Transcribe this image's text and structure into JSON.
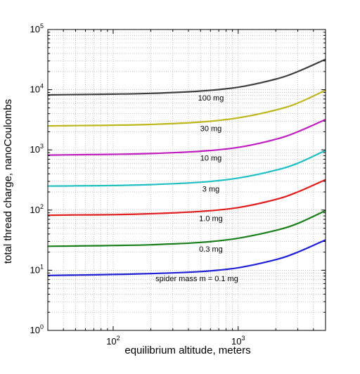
{
  "chart_data": {
    "type": "line",
    "title": "",
    "xlabel": "equilibrium altitude, meters",
    "ylabel": "total thread charge, nanoCoulombs",
    "x_scale": "log",
    "y_scale": "log",
    "xlim": [
      30,
      5000
    ],
    "ylim": [
      1,
      100000
    ],
    "grid": true,
    "x_ticks": [
      {
        "value": 100,
        "base": "10",
        "exp": "2"
      },
      {
        "value": 1000,
        "base": "10",
        "exp": "3"
      }
    ],
    "y_ticks": [
      {
        "value": 1,
        "base": "10",
        "exp": "0"
      },
      {
        "value": 10,
        "base": "10",
        "exp": "1"
      },
      {
        "value": 100,
        "base": "10",
        "exp": "2"
      },
      {
        "value": 1000,
        "base": "10",
        "exp": "3"
      },
      {
        "value": 10000,
        "base": "10",
        "exp": "4"
      },
      {
        "value": 100000,
        "base": "10",
        "exp": "5"
      }
    ],
    "x": [
      30,
      50,
      100,
      200,
      500,
      1000,
      2000,
      3000,
      5000
    ],
    "series": [
      {
        "label": "spider mass m = 0.1 mg",
        "color": "#1f1fd6",
        "values": [
          8.2,
          8.3,
          8.5,
          8.8,
          9.5,
          11,
          15,
          20,
          32
        ]
      },
      {
        "label": "0.3 mg",
        "color": "#1a7f1a",
        "values": [
          25,
          25.3,
          25.8,
          26.5,
          29,
          34,
          46,
          60,
          98
        ]
      },
      {
        "label": "1.0 mg",
        "color": "#e01e1e",
        "values": [
          82,
          83,
          84,
          87,
          95,
          110,
          150,
          200,
          320
        ]
      },
      {
        "label": "3 mg",
        "color": "#1fbfc4",
        "values": [
          250,
          252,
          256,
          265,
          290,
          340,
          460,
          600,
          980
        ]
      },
      {
        "label": "10 mg",
        "color": "#bf1fbf",
        "values": [
          820,
          830,
          845,
          870,
          950,
          1100,
          1500,
          2000,
          3200
        ]
      },
      {
        "label": "30 mg",
        "color": "#bdb61c",
        "values": [
          2500,
          2530,
          2570,
          2650,
          2900,
          3400,
          4600,
          6000,
          9800
        ]
      },
      {
        "label": "100 mg",
        "color": "#3f3f3f",
        "values": [
          8200,
          8300,
          8450,
          8700,
          9500,
          11000,
          15000,
          20000,
          32000
        ]
      }
    ]
  }
}
